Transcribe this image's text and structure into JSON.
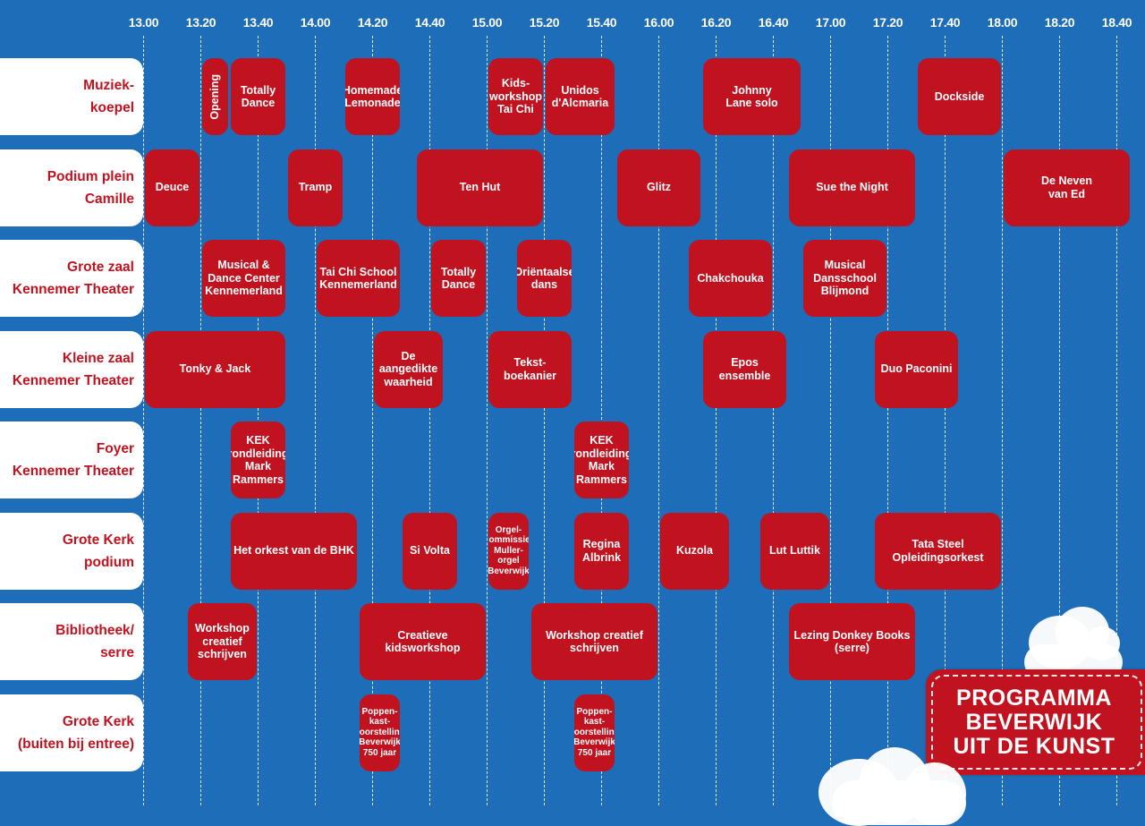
{
  "colors": {
    "background": "#1d6db8",
    "event": "#c1121f",
    "label_text": "#c1121f",
    "label_bg": "#ffffff",
    "time_text": "#ffffff"
  },
  "badge": {
    "text": "PROGRAMMA\nBEVERWIJK\nUIT DE KUNST"
  },
  "time_ticks": [
    "13.00",
    "13.20",
    "13.40",
    "14.00",
    "14.20",
    "14.40",
    "15.00",
    "15.20",
    "15.40",
    "16.00",
    "16.20",
    "16.40",
    "17.00",
    "17.20",
    "17.40",
    "18.00",
    "18.20",
    "18.40"
  ],
  "venues": [
    {
      "label": "Muziek-\nkoepel",
      "events": [
        {
          "title": "Opening",
          "start": "13.20",
          "end": "13.30",
          "vertical": true
        },
        {
          "title": "Totally\nDance",
          "start": "13.30",
          "end": "13.50"
        },
        {
          "title": "Homemade\nLemonade",
          "start": "14.10",
          "end": "14.30"
        },
        {
          "title": "Kids-\nworkshop\nTai Chi",
          "start": "15.00",
          "end": "15.20"
        },
        {
          "title": "Unidos\nd'Alcmaria",
          "start": "15.20",
          "end": "15.45"
        },
        {
          "title": "Johnny\nLane solo",
          "start": "16.15",
          "end": "16.50"
        },
        {
          "title": "Dockside",
          "start": "17.30",
          "end": "18.00"
        }
      ]
    },
    {
      "label": "Podium plein\nCamille",
      "events": [
        {
          "title": "Deuce",
          "start": "13.00",
          "end": "13.20"
        },
        {
          "title": "Tramp",
          "start": "13.50",
          "end": "14.10"
        },
        {
          "title": "Ten Hut",
          "start": "14.35",
          "end": "15.20"
        },
        {
          "title": "Glitz",
          "start": "15.45",
          "end": "16.15"
        },
        {
          "title": "Sue the Night",
          "start": "16.45",
          "end": "17.30"
        },
        {
          "title": "De Neven\nvan Ed",
          "start": "18.00",
          "end": "18.45"
        }
      ]
    },
    {
      "label": "Grote zaal\nKennemer Theater",
      "events": [
        {
          "title": "Musical &\nDance Center\nKennemerland",
          "start": "13.20",
          "end": "13.50"
        },
        {
          "title": "Tai Chi School\nKennemerland",
          "start": "14.00",
          "end": "14.30"
        },
        {
          "title": "Totally\nDance",
          "start": "14.40",
          "end": "15.00"
        },
        {
          "title": "Oriëntaalse\ndans",
          "start": "15.10",
          "end": "15.30"
        },
        {
          "title": "Chakchouka",
          "start": "16.10",
          "end": "16.40"
        },
        {
          "title": "Musical\nDansschool\nBlijmond",
          "start": "16.50",
          "end": "17.20"
        }
      ]
    },
    {
      "label": "Kleine zaal\nKennemer Theater",
      "events": [
        {
          "title": "Tonky & Jack",
          "start": "13.00",
          "end": "13.50"
        },
        {
          "title": "De\naangedikte\nwaarheid",
          "start": "14.20",
          "end": "14.45"
        },
        {
          "title": "Tekst-\nboekanier",
          "start": "15.00",
          "end": "15.30"
        },
        {
          "title": "Epos ensemble",
          "start": "16.15",
          "end": "16.45"
        },
        {
          "title": "Duo Paconini",
          "start": "17.15",
          "end": "17.45"
        }
      ]
    },
    {
      "label": "Foyer\nKennemer Theater",
      "events": [
        {
          "title": "KEK\nrondleiding\nMark\nRammers",
          "start": "13.30",
          "end": "13.50"
        },
        {
          "title": "KEK\nrondleiding\nMark\nRammers",
          "start": "15.30",
          "end": "15.50"
        }
      ]
    },
    {
      "label": "Grote Kerk\npodium",
      "events": [
        {
          "title": "Het orkest van de BHK",
          "start": "13.30",
          "end": "14.15"
        },
        {
          "title": "Si Volta",
          "start": "14.30",
          "end": "14.50"
        },
        {
          "title": "Orgel-\ncommissie-\nMuller-\norgel\nBeverwijk",
          "start": "15.00",
          "end": "15.15",
          "small": true
        },
        {
          "title": "Regina\nAlbrink",
          "start": "15.30",
          "end": "15.50"
        },
        {
          "title": "Kuzola",
          "start": "16.00",
          "end": "16.25"
        },
        {
          "title": "Lut Luttik",
          "start": "16.35",
          "end": "17.00"
        },
        {
          "title": "Tata Steel\nOpleidingsorkest",
          "start": "17.15",
          "end": "18.00"
        }
      ]
    },
    {
      "label": "Bibliotheek/\nserre",
      "events": [
        {
          "title": "Workshop\ncreatief\nschrijven",
          "start": "13.15",
          "end": "13.40"
        },
        {
          "title": "Creatieve kidsworkshop",
          "start": "14.15",
          "end": "15.00"
        },
        {
          "title": "Workshop creatief\nschrijven",
          "start": "15.15",
          "end": "16.00"
        },
        {
          "title": "Lezing Donkey Books\n(serre)",
          "start": "16.45",
          "end": "17.30"
        }
      ]
    },
    {
      "label": "Grote Kerk\n(buiten bij entree)",
      "events": [
        {
          "title": "Poppen-\nkast-\nvoorstelling\nBeverwijk\n750 jaar",
          "start": "14.15",
          "end": "14.30",
          "small": true
        },
        {
          "title": "Poppen-\nkast-\nvoorstelling\nBeverwijk\n750 jaar",
          "start": "15.30",
          "end": "15.45",
          "small": true
        }
      ]
    }
  ]
}
